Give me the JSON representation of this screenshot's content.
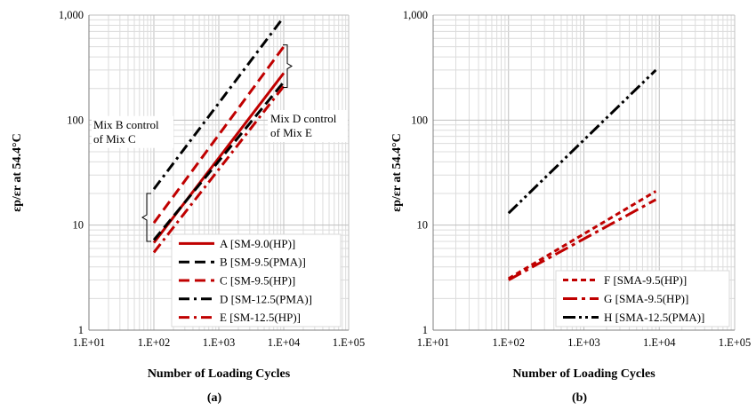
{
  "chart_data": [
    {
      "type": "line",
      "panel_label": "(a)",
      "xlabel": "Number of Loading Cycles",
      "ylabel": "εp/εr at 54.4°C",
      "xscale": "log",
      "yscale": "log",
      "xlim": [
        10,
        100000
      ],
      "ylim": [
        1,
        1000
      ],
      "x_ticks": [
        "1.E+01",
        "1.E+02",
        "1.E+03",
        "1.E+04",
        "1.E+05"
      ],
      "y_ticks": [
        "1",
        "10",
        "100",
        "1,000"
      ],
      "grid": true,
      "legend_position": "bottom-right",
      "series": [
        {
          "name": "A [SM-9.0(HP)]",
          "color": "#c00000",
          "dash": "solid",
          "x": [
            100,
            10000
          ],
          "y": [
            6.8,
            280
          ]
        },
        {
          "name": "B [SM-9.5(PMA)]",
          "color": "#000000",
          "dash": "dash",
          "x": [
            100,
            10000
          ],
          "y": [
            7.2,
            230
          ]
        },
        {
          "name": "C [SM-9.5(HP)]",
          "color": "#c00000",
          "dash": "dash",
          "x": [
            100,
            10000
          ],
          "y": [
            10.5,
            500
          ]
        },
        {
          "name": "D [SM-12.5(PMA)]",
          "color": "#000000",
          "dash": "dashdot",
          "x": [
            100,
            9000
          ],
          "y": [
            22,
            880
          ]
        },
        {
          "name": "E [SM-12.5(HP)]",
          "color": "#c00000",
          "dash": "dashdot",
          "x": [
            100,
            10000
          ],
          "y": [
            5.5,
            210
          ]
        }
      ],
      "annotations": [
        {
          "lines": [
            "Mix B control",
            "of Mix C"
          ],
          "x": 100,
          "y": 28
        },
        {
          "lines": [
            "Mix D control",
            "of Mix E"
          ],
          "x": 9500,
          "y": 120
        }
      ]
    },
    {
      "type": "line",
      "panel_label": "(b)",
      "xlabel": "Number of Loading Cycles",
      "ylabel": "εp/εr at 54.4°C",
      "xscale": "log",
      "yscale": "log",
      "xlim": [
        10,
        100000
      ],
      "ylim": [
        1,
        1000
      ],
      "x_ticks": [
        "1.E+01",
        "1.E+02",
        "1.E+03",
        "1.E+04",
        "1.E+05"
      ],
      "y_ticks": [
        "1",
        "10",
        "100",
        "1,000"
      ],
      "grid": true,
      "legend_position": "bottom-right",
      "series": [
        {
          "name": "F [SMA-9.5(HP)]",
          "color": "#c00000",
          "dash": "shortdash",
          "x": [
            100,
            9000
          ],
          "y": [
            3.1,
            21
          ]
        },
        {
          "name": "G [SMA-9.5(HP)]",
          "color": "#c00000",
          "dash": "longdashdot",
          "x": [
            100,
            9000
          ],
          "y": [
            3.0,
            17.5
          ]
        },
        {
          "name": "H [SMA-12.5(PMA)]",
          "color": "#000000",
          "dash": "dashdotdot",
          "x": [
            100,
            9000
          ],
          "y": [
            13,
            300
          ]
        }
      ]
    }
  ]
}
